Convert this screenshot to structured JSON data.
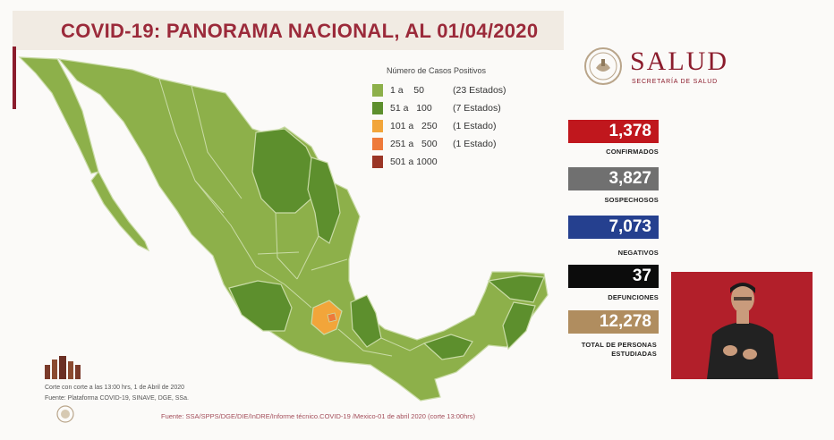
{
  "title": "COVID-19: PANORAMA NACIONAL, AL 01/04/2020",
  "legend": {
    "title": "Número de Casos Positivos",
    "rows": [
      {
        "range": "1 a    50",
        "note": "(23 Estados)",
        "color": "#8db04a"
      },
      {
        "range": "51 a   100",
        "note": "(7 Estados)",
        "color": "#5d8f2d"
      },
      {
        "range": "101 a   250",
        "note": "(1 Estado)",
        "color": "#f2a53a"
      },
      {
        "range": "251 a   500",
        "note": "(1 Estado)",
        "color": "#ee7a3a"
      },
      {
        "range": "501 a 1000",
        "note": "",
        "color": "#9a3526"
      }
    ]
  },
  "brand": {
    "name": "SALUD",
    "subtitle": "SECRETARÍA DE SALUD",
    "color": "#8b1c2c"
  },
  "stats": [
    {
      "value": "1,378",
      "label": "CONFIRMADOS",
      "color": "#c0171d"
    },
    {
      "value": "3,827",
      "label": "SOSPECHOSOS",
      "color": "#707070"
    },
    {
      "value": "7,073",
      "label": "NEGATIVOS",
      "color": "#25408f"
    },
    {
      "value": "37",
      "label": "DEFUNCIONES",
      "color": "#0c0c0c"
    },
    {
      "value": "12,278",
      "label": "TOTAL DE PERSONAS ESTUDIADAS",
      "color": "#b08d5f"
    }
  ],
  "footnotes": {
    "corte": "Corte con corte a las 13:00 hrs, 1 de Abril de 2020",
    "fuente_plataforma": "Fuente: Plataforma COVID-19, SINAVE, DGE, SSa.",
    "fuente": "Fuente: SSA/SPPS/DGE/DIE/InDRE/Informe técnico.COVID-19 /Mexico-01 de abril 2020 (corte 13:00hrs)"
  }
}
